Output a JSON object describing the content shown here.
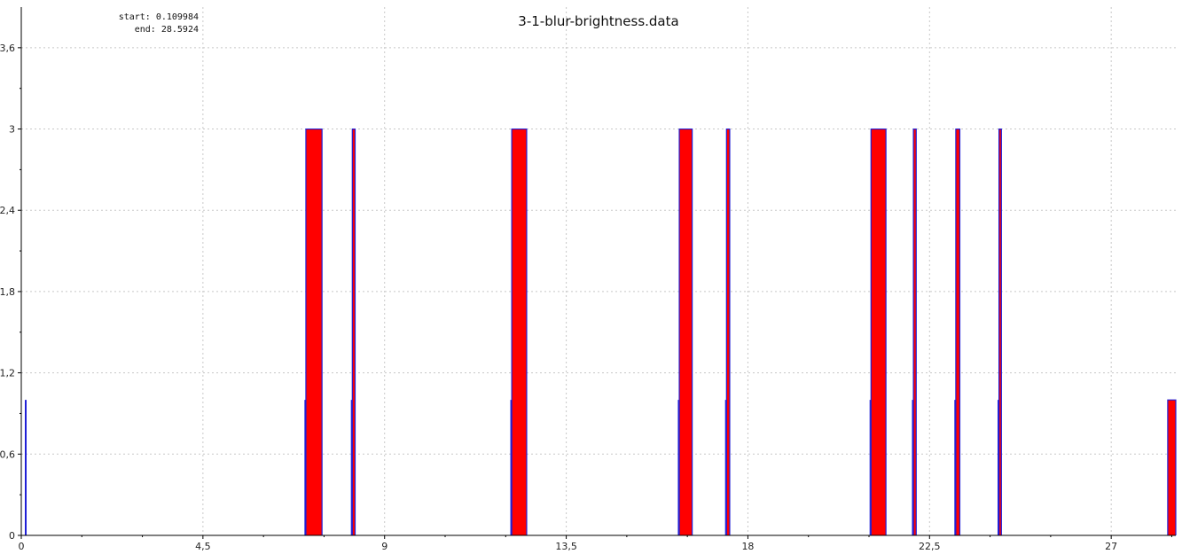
{
  "chart_data": {
    "type": "step",
    "title": "3-1-blur-brightness.data",
    "info": {
      "start": "start: 0.109984",
      "end": "end: 28.5924"
    },
    "xlim": [
      0,
      28.6
    ],
    "ylim": [
      0,
      3.9
    ],
    "xticks": [
      {
        "value": 0,
        "label": "0"
      },
      {
        "value": 4.5,
        "label": "4,5"
      },
      {
        "value": 9,
        "label": "9"
      },
      {
        "value": 13.5,
        "label": "13,5"
      },
      {
        "value": 18,
        "label": "18"
      },
      {
        "value": 22.5,
        "label": "22,5"
      },
      {
        "value": 27,
        "label": "27"
      }
    ],
    "yticks": [
      {
        "value": 0,
        "label": "0"
      },
      {
        "value": 0.6,
        "label": "0,6"
      },
      {
        "value": 1.2,
        "label": "1,2"
      },
      {
        "value": 1.8,
        "label": "1,8"
      },
      {
        "value": 2.4,
        "label": "2,4"
      },
      {
        "value": 3,
        "label": "3"
      },
      {
        "value": 3.6,
        "label": "3,6"
      }
    ],
    "grid": true,
    "fill_color": "#ff0000",
    "line_color": "#1f1fd6",
    "spikes": [
      {
        "x": 0.11,
        "y": 1
      }
    ],
    "bars": [
      {
        "x0": 7.05,
        "x1": 7.45,
        "y": 3
      },
      {
        "x0": 8.2,
        "x1": 8.27,
        "y": 3
      },
      {
        "x0": 12.15,
        "x1": 12.52,
        "y": 3
      },
      {
        "x0": 16.3,
        "x1": 16.62,
        "y": 3
      },
      {
        "x0": 17.47,
        "x1": 17.55,
        "y": 3
      },
      {
        "x0": 21.05,
        "x1": 21.42,
        "y": 3
      },
      {
        "x0": 22.1,
        "x1": 22.17,
        "y": 3
      },
      {
        "x0": 23.15,
        "x1": 23.25,
        "y": 3
      },
      {
        "x0": 24.22,
        "x1": 24.28,
        "y": 3
      },
      {
        "x0": 28.4,
        "x1": 28.6,
        "y": 1
      }
    ]
  }
}
